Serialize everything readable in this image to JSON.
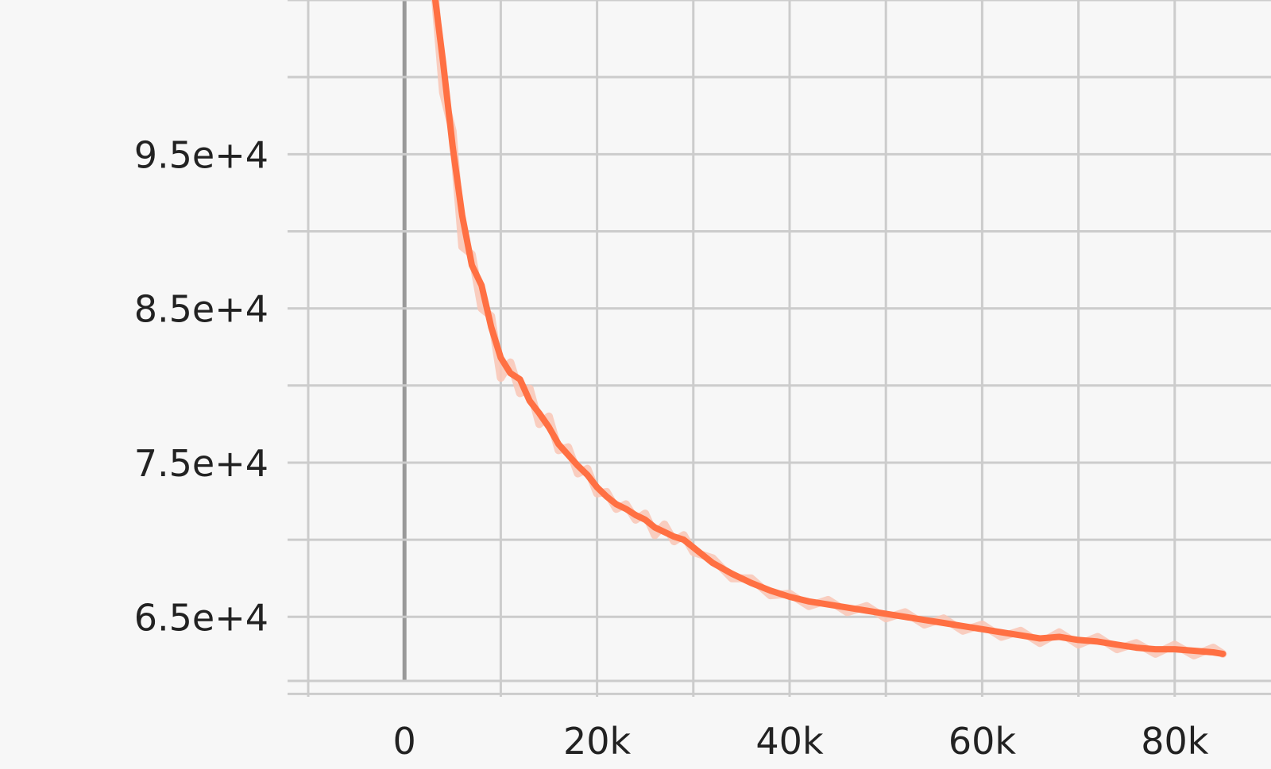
{
  "chart_data": {
    "type": "line",
    "title": "",
    "xlabel": "",
    "ylabel": "",
    "xlim": [
      -10000,
      90000
    ],
    "ylim": [
      61000,
      105000
    ],
    "x_ticks": [
      0,
      20000,
      40000,
      60000,
      80000
    ],
    "x_tick_labels": [
      "0",
      "20k",
      "40k",
      "60k",
      "80k"
    ],
    "y_ticks": [
      65000,
      75000,
      85000,
      95000
    ],
    "y_tick_labels": [
      "6.5e+4",
      "7.5e+4",
      "8.5e+4",
      "9.5e+4"
    ],
    "grid": true,
    "colors": {
      "line": "#ff7043",
      "raw": "#f9c6b5",
      "grid": "#cccccc",
      "zero_line": "#999999",
      "background": "#f7f7f7"
    },
    "series": [
      {
        "x": [
          3200,
          4000,
          5000,
          6000,
          7000,
          8000,
          9000,
          10000,
          11000,
          12000,
          13000,
          14000,
          15000,
          16000,
          17000,
          18000,
          19000,
          20000,
          21000,
          22000,
          23000,
          24000,
          25000,
          26000,
          27000,
          28000,
          29000,
          30000,
          32000,
          34000,
          36000,
          38000,
          40000,
          42000,
          44000,
          46000,
          48000,
          50000,
          52000,
          54000,
          56000,
          58000,
          60000,
          62000,
          64000,
          66000,
          68000,
          70000,
          72000,
          74000,
          76000,
          78000,
          80000,
          82000,
          84000,
          85000
        ],
        "y": [
          105000,
          101000,
          95500,
          91000,
          87800,
          86500,
          83800,
          81800,
          80800,
          80400,
          79000,
          78200,
          77300,
          76200,
          75500,
          74800,
          74200,
          73400,
          72800,
          72300,
          72000,
          71600,
          71300,
          70800,
          70500,
          70200,
          70000,
          69500,
          68500,
          67800,
          67200,
          66700,
          66300,
          66000,
          65800,
          65600,
          65400,
          65200,
          65000,
          64800,
          64600,
          64400,
          64200,
          64000,
          63800,
          63600,
          63700,
          63500,
          63400,
          63200,
          63000,
          62900,
          62900,
          62800,
          62700,
          62600
        ]
      }
    ],
    "raw_series": [
      {
        "x": [
          3200,
          4000,
          5000,
          6000,
          7000,
          8000,
          9000,
          10000,
          11000,
          12000,
          13000,
          14000,
          15000,
          16000,
          17000,
          18000,
          19000,
          20000,
          21000,
          22000,
          23000,
          24000,
          25000,
          26000,
          27000,
          28000,
          29000,
          30000,
          32000,
          34000,
          36000,
          38000,
          40000,
          42000,
          44000,
          46000,
          48000,
          50000,
          52000,
          54000,
          56000,
          58000,
          60000,
          62000,
          64000,
          66000,
          68000,
          70000,
          72000,
          74000,
          76000,
          78000,
          80000,
          82000,
          84000,
          85000
        ],
        "y": [
          105000,
          99000,
          96500,
          89000,
          88500,
          85000,
          84500,
          80500,
          81500,
          79500,
          79800,
          77500,
          78000,
          75800,
          76000,
          74300,
          74600,
          73000,
          73100,
          72000,
          72300,
          71300,
          71700,
          70300,
          71000,
          69900,
          70300,
          69200,
          68800,
          67500,
          67500,
          66400,
          66500,
          65700,
          66100,
          65300,
          65700,
          64900,
          65300,
          64500,
          64900,
          64100,
          64500,
          63700,
          64100,
          63300,
          64000,
          63200,
          63700,
          62900,
          63300,
          62600,
          63200,
          62500,
          63000,
          62600
        ]
      }
    ]
  }
}
